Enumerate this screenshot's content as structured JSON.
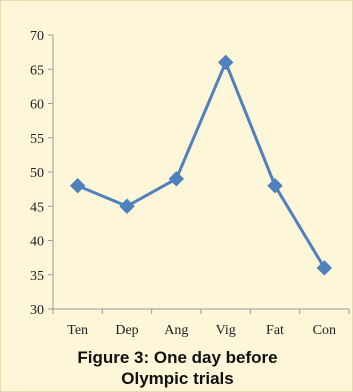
{
  "chart_data": {
    "type": "line",
    "categories": [
      "Ten",
      "Dep",
      "Ang",
      "Vig",
      "Fat",
      "Con"
    ],
    "values": [
      48,
      45,
      49,
      66,
      48,
      36
    ],
    "ylim": [
      30,
      70
    ],
    "yticks": [
      30,
      35,
      40,
      45,
      50,
      55,
      60,
      65,
      70
    ],
    "grid": false,
    "line_color": "#4f81bd",
    "marker": "diamond",
    "caption_line1": "Figure 3: One day before",
    "caption_line2": "Olympic trials"
  }
}
